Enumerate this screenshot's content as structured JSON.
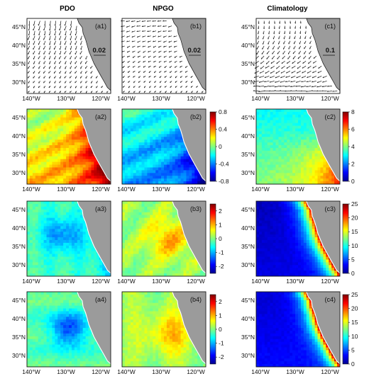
{
  "columns": [
    {
      "title": "PDO"
    },
    {
      "title": "NPGO"
    },
    {
      "title": "Climatology"
    }
  ],
  "lat_ticks": [
    "45°N",
    "40°N",
    "35°N",
    "30°N"
  ],
  "lon_ticks": [
    "140°W",
    "130°W",
    "120°W"
  ],
  "panels": [
    {
      "label": "(a1)",
      "kind": "vector",
      "scale": "0.02",
      "seed": 1
    },
    {
      "label": "(b1)",
      "kind": "vector",
      "scale": "0.02",
      "seed": 2
    },
    {
      "label": "(c1)",
      "kind": "vector",
      "scale": "0.1",
      "seed": 3
    },
    {
      "label": "(a2)",
      "kind": "field",
      "scheme": "pdo2"
    },
    {
      "label": "(b2)",
      "kind": "field",
      "scheme": "npgo2"
    },
    {
      "label": "(c2)",
      "kind": "field",
      "scheme": "clim2"
    },
    {
      "label": "(a3)",
      "kind": "field",
      "scheme": "pdo3"
    },
    {
      "label": "(b3)",
      "kind": "field",
      "scheme": "npgo3"
    },
    {
      "label": "(c3)",
      "kind": "field",
      "scheme": "clim3"
    },
    {
      "label": "(a4)",
      "kind": "field",
      "scheme": "pdo4"
    },
    {
      "label": "(b4)",
      "kind": "field",
      "scheme": "npgo4"
    },
    {
      "label": "(c4)",
      "kind": "field",
      "scheme": "clim4"
    }
  ],
  "colorbars": [
    {
      "ticks": [
        "0.8",
        "0.4",
        "0",
        "-0.4",
        "-0.8"
      ],
      "min": -0.8,
      "max": 0.8
    },
    {
      "ticks": [
        "8",
        "6",
        "4",
        "2",
        "0"
      ],
      "min": 0,
      "max": 8
    },
    {
      "ticks": [
        "2",
        "1",
        "0",
        "-1",
        "-2"
      ],
      "min": -2.5,
      "max": 2.5
    },
    {
      "ticks": [
        "25",
        "20",
        "15",
        "10",
        "5",
        "0"
      ],
      "min": 0,
      "max": 25
    },
    {
      "ticks": [
        "2",
        "1",
        "0",
        "-1",
        "-2"
      ],
      "min": -2.5,
      "max": 2.5
    },
    {
      "ticks": [
        "25",
        "20",
        "15",
        "10",
        "5",
        "0"
      ],
      "min": 0,
      "max": 25
    }
  ]
}
